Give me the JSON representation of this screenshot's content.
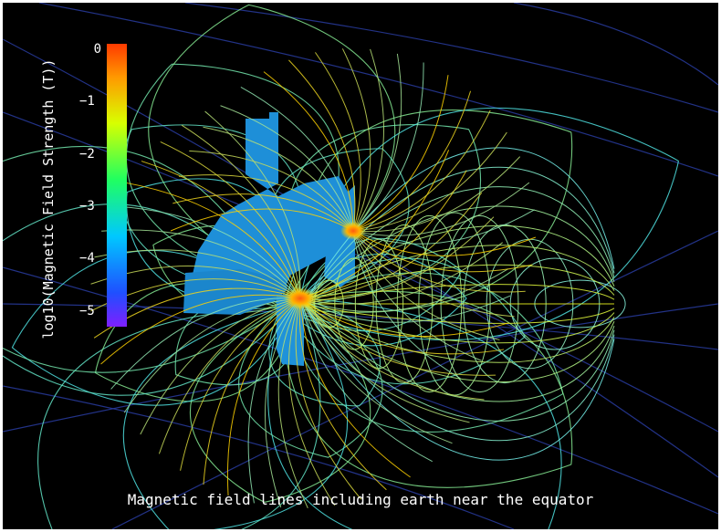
{
  "colorbar": {
    "label": "log10(Magnetic Field Strength (T))",
    "ticks": [
      "0",
      "−1",
      "−2",
      "−3",
      "−4",
      "−5"
    ],
    "range": [
      -5.3,
      0.1
    ],
    "colors": [
      "#7f1fff",
      "#1f4fff",
      "#00c8ff",
      "#20ff60",
      "#d8ff00",
      "#ff9a00",
      "#ff3a00"
    ]
  },
  "caption": "Magnetic field lines including earth near the equator",
  "colors": {
    "background": "#000000",
    "object": "#1e8fd8",
    "weak_field": "#4fe0e0",
    "strong_field": "#ff6a1a"
  }
}
